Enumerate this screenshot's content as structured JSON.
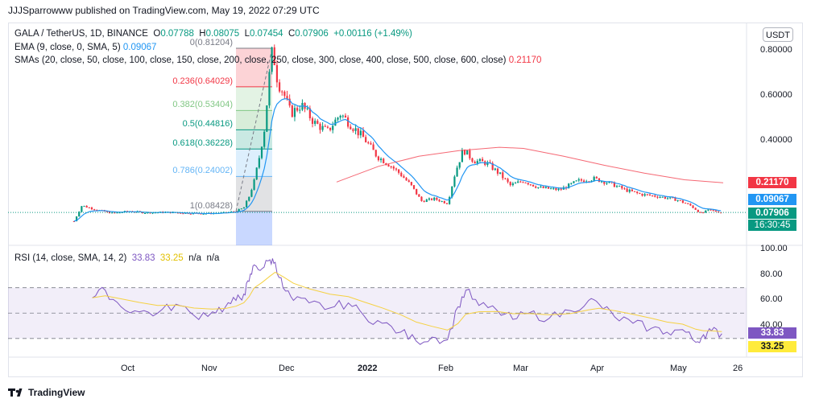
{
  "header": {
    "published": "JJJSparrowww published on TradingView.com, May 19, 2022 07:29 UTC"
  },
  "currency_button": "USDT",
  "legend": {
    "symbol": "GALA / TetherUS, 1D, BINANCE",
    "o_label": "O",
    "o": "0.07788",
    "h_label": "H",
    "h": "0.08075",
    "l_label": "L",
    "l": "0.07454",
    "c_label": "C",
    "c": "0.07906",
    "change": "+0.00116 (+1.49%)",
    "ema_label": "EMA (9, close, 0, SMA, 5)",
    "ema_value": "0.09067",
    "sma_label": "SMAs (20, close, 50, close, 100, close, 150, close, 200, close, 250, close, 300, close, 400, close, 500, close, 600, close)",
    "sma_value": "0.21170",
    "rsi_label": "RSI (14, close, SMA, 14, 2)",
    "rsi_value": "33.83",
    "rsi_sma_value": "33.25",
    "na1": "n/a",
    "na2": "n/a"
  },
  "fib_labels": [
    {
      "text": "0(0.81204)",
      "color": "#787b86"
    },
    {
      "text": "0.236(0.64029)",
      "color": "#f23645"
    },
    {
      "text": "0.382(0.53404)",
      "color": "#81c784"
    },
    {
      "text": "0.5(0.44816)",
      "color": "#089981"
    },
    {
      "text": "0.618(0.36228)",
      "color": "#089981"
    },
    {
      "text": "0.786(0.24002)",
      "color": "#64b5f6"
    },
    {
      "text": "1(0.08428)",
      "color": "#787b86"
    }
  ],
  "price_axis": [
    "0.80000",
    "0.60000",
    "0.40000"
  ],
  "rsi_axis": [
    "100.00",
    "80.00",
    "60.00",
    "40.00"
  ],
  "time_axis": [
    "Oct",
    "Nov",
    "Dec",
    "2022",
    "Feb",
    "Mar",
    "Apr",
    "May",
    "26"
  ],
  "price_boxes": {
    "sma": {
      "text": "0.21170",
      "color": "#f23645"
    },
    "ema": {
      "text": "0.09067",
      "color": "#2196f3"
    },
    "last": {
      "text": "0.07906",
      "color": "#089981"
    },
    "countdown": {
      "text": "16:30:45",
      "color": "#089981"
    },
    "rsi": {
      "text": "33.83",
      "color": "#7e57c2"
    },
    "rsi_sma": {
      "text": "33.25",
      "color": "#ffeb3b",
      "text_color": "#131722"
    }
  },
  "footer": {
    "brand": "TradingView"
  },
  "colors": {
    "up": "#089981",
    "down": "#f23645",
    "ema": "#2196f3",
    "sma": "#f23645",
    "rsi": "#7e57c2",
    "rsi_sma": "#f5d142"
  },
  "chart_data": {
    "type": "candlestick",
    "title": "GALA / TetherUS, 1D, BINANCE",
    "x_ticks": [
      "Oct",
      "Nov",
      "Dec",
      "2022",
      "Feb",
      "Mar",
      "Apr",
      "May",
      "26"
    ],
    "y_ticks": [
      0.8,
      0.6,
      0.4
    ],
    "ylim": [
      0.0,
      0.88
    ],
    "close_path": [
      [
        "2021-09-13",
        0.04
      ],
      [
        "2021-09-16",
        0.11
      ],
      [
        "2021-09-22",
        0.09
      ],
      [
        "2021-09-28",
        0.075
      ],
      [
        "2021-10-04",
        0.085
      ],
      [
        "2021-10-10",
        0.078
      ],
      [
        "2021-10-18",
        0.08
      ],
      [
        "2021-10-26",
        0.076
      ],
      [
        "2021-11-03",
        0.074
      ],
      [
        "2021-11-10",
        0.078
      ],
      [
        "2021-11-14",
        0.084
      ],
      [
        "2021-11-17",
        0.1
      ],
      [
        "2021-11-19",
        0.15
      ],
      [
        "2021-11-21",
        0.22
      ],
      [
        "2021-11-23",
        0.33
      ],
      [
        "2021-11-25",
        0.46
      ],
      [
        "2021-11-27",
        0.72
      ],
      [
        "2021-11-28",
        0.81
      ],
      [
        "2021-11-30",
        0.66
      ],
      [
        "2021-12-02",
        0.62
      ],
      [
        "2021-12-05",
        0.52
      ],
      [
        "2021-12-09",
        0.56
      ],
      [
        "2021-12-14",
        0.48
      ],
      [
        "2021-12-19",
        0.44
      ],
      [
        "2021-12-24",
        0.52
      ],
      [
        "2021-12-28",
        0.47
      ],
      [
        "2022-01-02",
        0.41
      ],
      [
        "2022-01-07",
        0.33
      ],
      [
        "2022-01-12",
        0.29
      ],
      [
        "2022-01-16",
        0.25
      ],
      [
        "2022-01-20",
        0.2
      ],
      [
        "2022-01-24",
        0.13
      ],
      [
        "2022-01-29",
        0.14
      ],
      [
        "2022-02-03",
        0.12
      ],
      [
        "2022-02-06",
        0.26
      ],
      [
        "2022-02-09",
        0.36
      ],
      [
        "2022-02-13",
        0.31
      ],
      [
        "2022-02-18",
        0.3
      ],
      [
        "2022-02-23",
        0.25
      ],
      [
        "2022-02-27",
        0.2
      ],
      [
        "2022-03-04",
        0.22
      ],
      [
        "2022-03-10",
        0.19
      ],
      [
        "2022-03-18",
        0.18
      ],
      [
        "2022-03-25",
        0.22
      ],
      [
        "2022-03-31",
        0.23
      ],
      [
        "2022-04-06",
        0.21
      ],
      [
        "2022-04-12",
        0.18
      ],
      [
        "2022-04-18",
        0.16
      ],
      [
        "2022-04-25",
        0.15
      ],
      [
        "2022-05-02",
        0.135
      ],
      [
        "2022-05-07",
        0.11
      ],
      [
        "2022-05-11",
        0.075
      ],
      [
        "2022-05-14",
        0.09
      ],
      [
        "2022-05-19",
        0.079
      ]
    ],
    "ema_last": 0.09067,
    "sma_last": 0.2117,
    "last_close": 0.07906,
    "fib_retracement": {
      "high": 0.81204,
      "low": 0.08428
    },
    "rsi": {
      "ylim": [
        20,
        100
      ],
      "y_ticks": [
        100,
        80,
        60,
        40
      ],
      "bands": [
        70,
        50,
        30
      ],
      "values": [
        [
          "2021-09-20",
          62
        ],
        [
          "2021-09-25",
          68
        ],
        [
          "2021-10-01",
          55
        ],
        [
          "2021-10-08",
          51
        ],
        [
          "2021-10-15",
          50
        ],
        [
          "2021-10-22",
          57
        ],
        [
          "2021-10-29",
          48
        ],
        [
          "2021-11-05",
          51
        ],
        [
          "2021-11-10",
          55
        ],
        [
          "2021-11-14",
          60
        ],
        [
          "2021-11-17",
          65
        ],
        [
          "2021-11-19",
          75
        ],
        [
          "2021-11-21",
          88
        ],
        [
          "2021-11-24",
          85
        ],
        [
          "2021-11-27",
          92
        ],
        [
          "2021-11-29",
          90
        ],
        [
          "2021-12-02",
          70
        ],
        [
          "2021-12-06",
          60
        ],
        [
          "2021-12-12",
          58
        ],
        [
          "2021-12-20",
          54
        ],
        [
          "2021-12-27",
          58
        ],
        [
          "2022-01-02",
          48
        ],
        [
          "2022-01-09",
          42
        ],
        [
          "2022-01-16",
          35
        ],
        [
          "2022-01-22",
          28
        ],
        [
          "2022-01-28",
          31
        ],
        [
          "2022-02-03",
          29
        ],
        [
          "2022-02-07",
          55
        ],
        [
          "2022-02-10",
          68
        ],
        [
          "2022-02-15",
          56
        ],
        [
          "2022-02-22",
          52
        ],
        [
          "2022-02-28",
          45
        ],
        [
          "2022-03-06",
          50
        ],
        [
          "2022-03-14",
          46
        ],
        [
          "2022-03-22",
          52
        ],
        [
          "2022-03-29",
          60
        ],
        [
          "2022-04-02",
          57
        ],
        [
          "2022-04-08",
          47
        ],
        [
          "2022-04-15",
          42
        ],
        [
          "2022-04-22",
          38
        ],
        [
          "2022-04-28",
          35
        ],
        [
          "2022-05-04",
          37
        ],
        [
          "2022-05-09",
          27
        ],
        [
          "2022-05-12",
          33
        ],
        [
          "2022-05-15",
          36
        ],
        [
          "2022-05-19",
          33.83
        ]
      ],
      "sma_last": 33.25
    }
  }
}
